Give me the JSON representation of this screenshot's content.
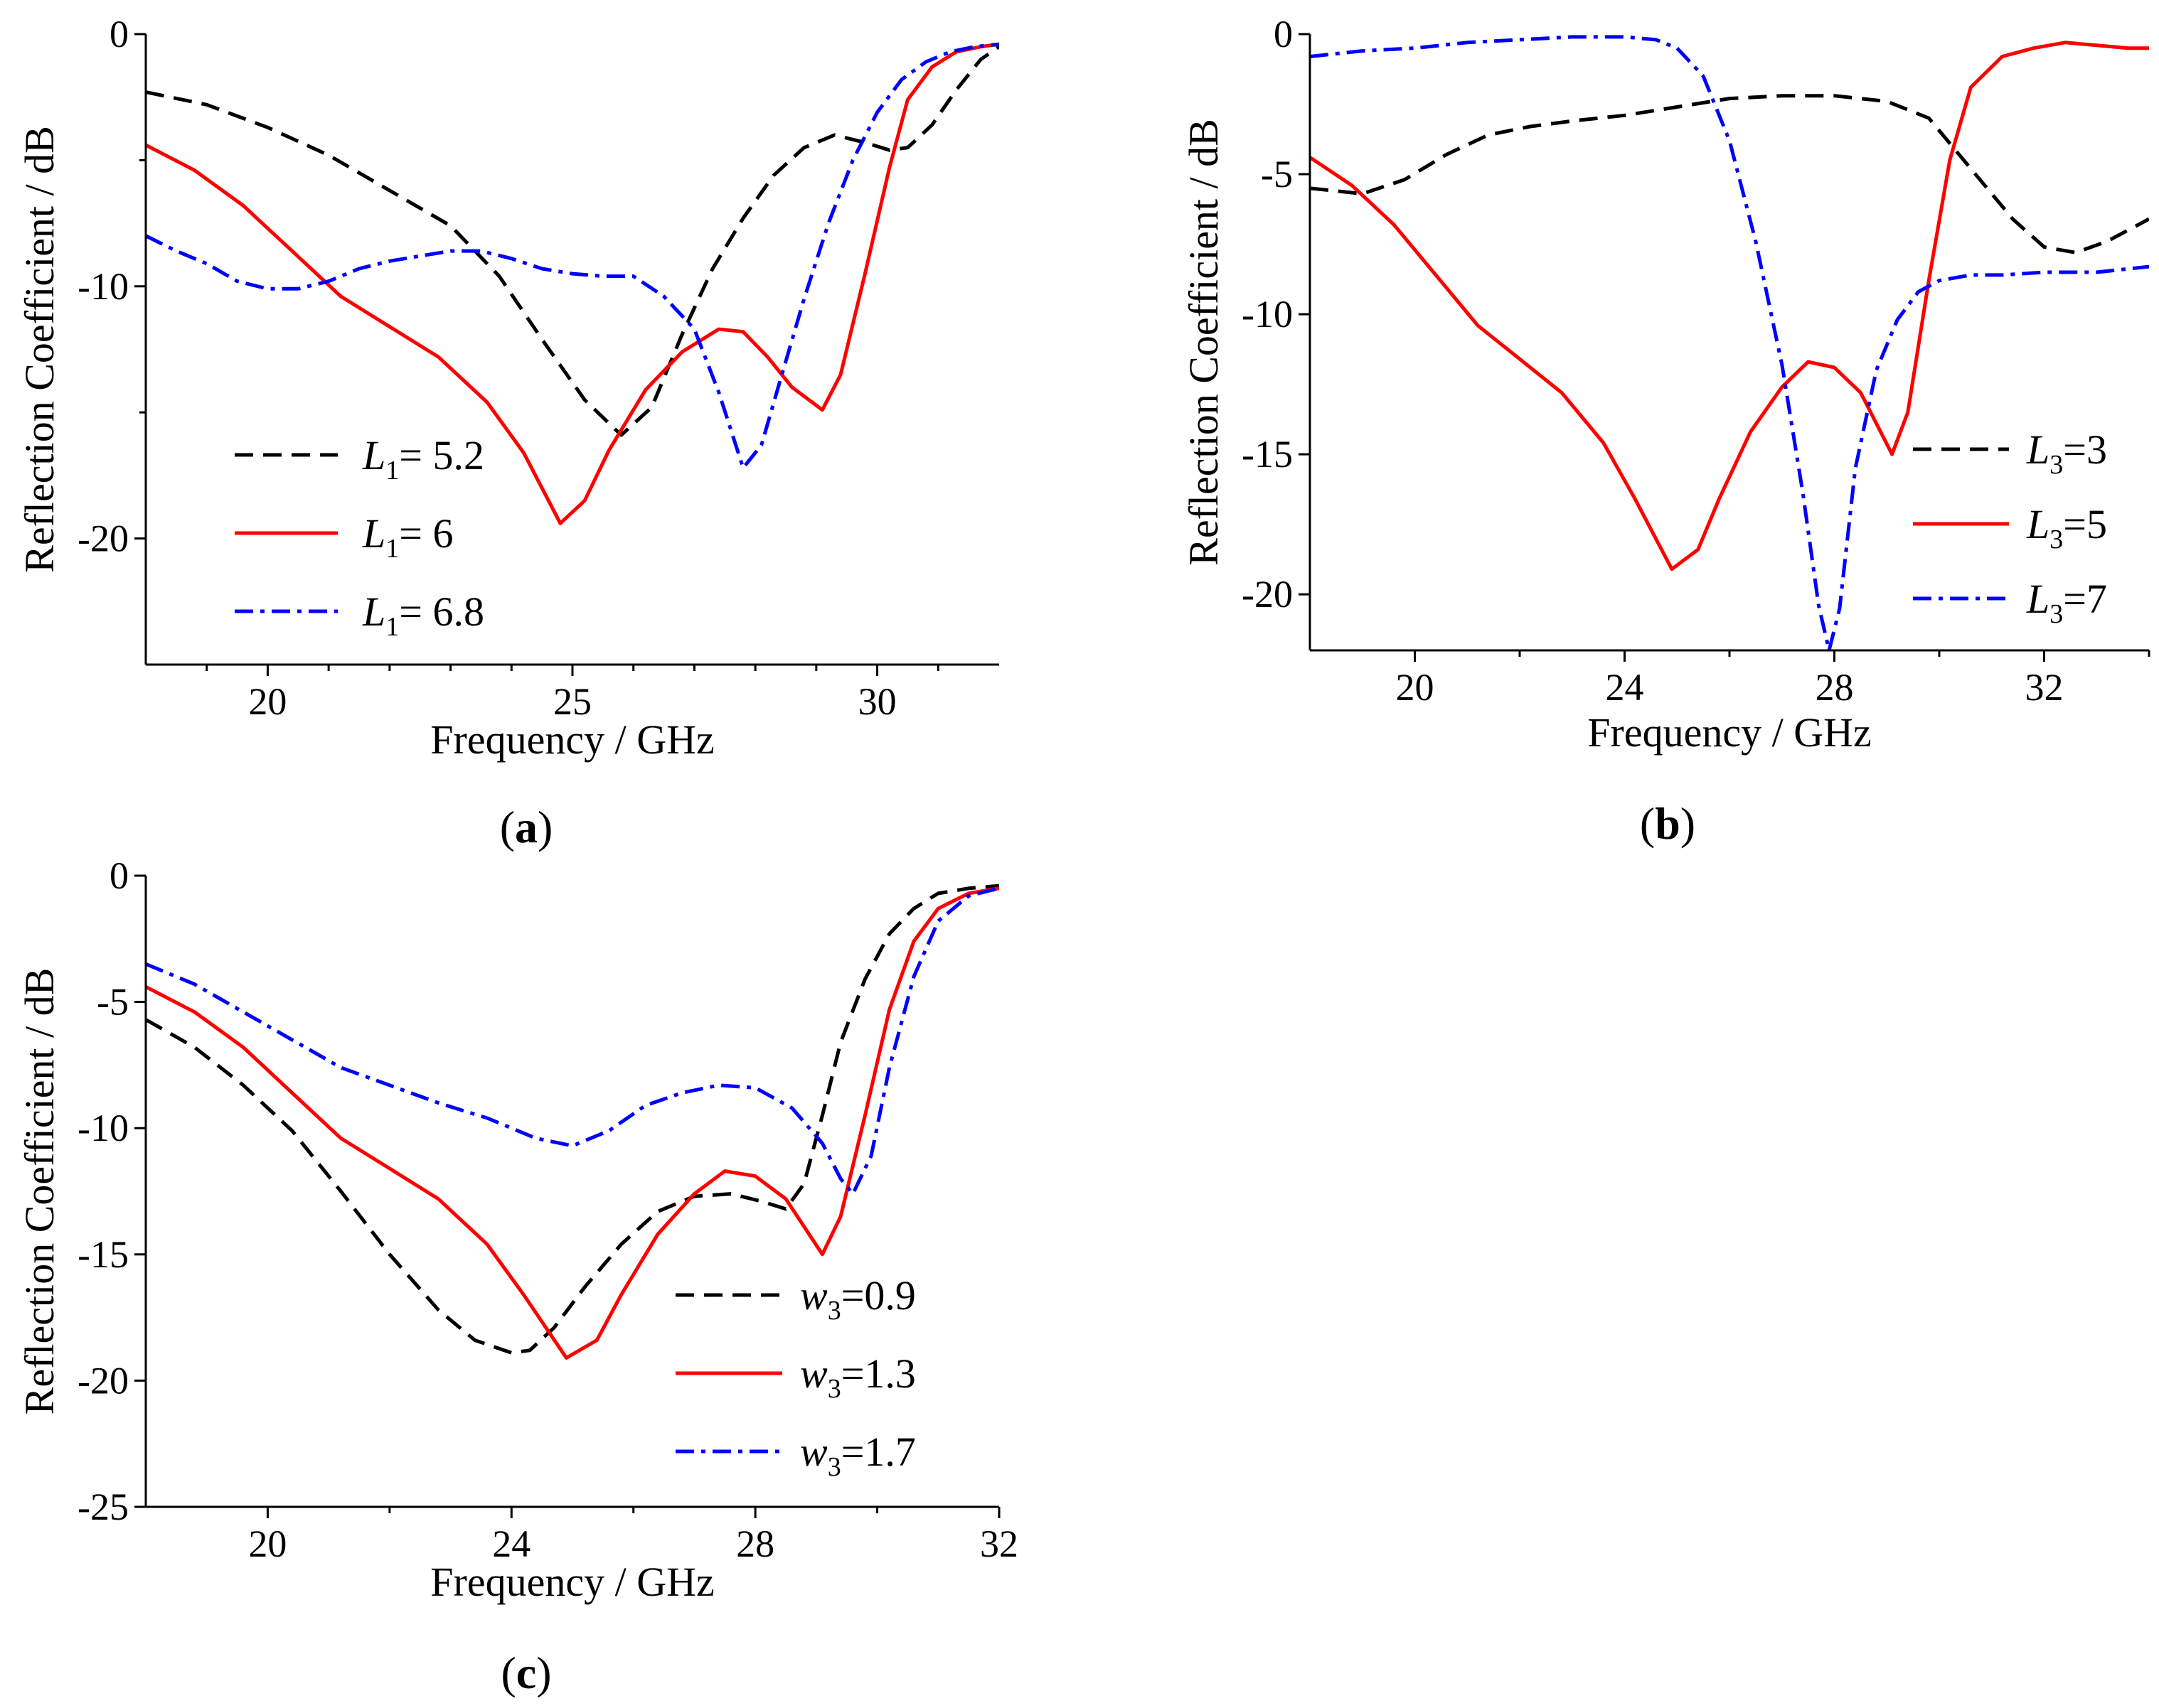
{
  "chart_data": [
    {
      "id": "a",
      "panel_label": "a",
      "type": "line",
      "xlabel": "Frequency / GHz",
      "ylabel": "Reflection Coefficient / dB",
      "xlim": [
        18,
        32
      ],
      "ylim": [
        -25,
        0
      ],
      "xticks": [
        20,
        25,
        30
      ],
      "yticks": [
        0,
        -10,
        -20
      ],
      "xticks_minor": [
        19,
        21,
        22,
        23,
        24,
        26,
        27,
        28,
        29,
        31
      ],
      "yticks_minor": [
        -5,
        -15
      ],
      "grid": false,
      "legend_position": "bottom-left",
      "series": [
        {
          "name_main": "L",
          "name_sub": "1",
          "name_rest": "= 5.2",
          "color": "#000000",
          "dash": "26,14",
          "x": [
            18,
            19,
            20,
            21,
            22,
            23,
            23.8,
            24.5,
            25.2,
            25.8,
            26.3,
            26.8,
            27.3,
            27.8,
            28.3,
            28.8,
            29.3,
            29.8,
            30.2,
            30.5,
            30.9,
            31.3,
            31.7,
            32
          ],
          "y": [
            -2.3,
            -2.8,
            -3.7,
            -4.8,
            -6.2,
            -7.6,
            -9.6,
            -12.1,
            -14.5,
            -15.9,
            -14.8,
            -11.9,
            -9.3,
            -7.3,
            -5.6,
            -4.5,
            -4.0,
            -4.3,
            -4.6,
            -4.5,
            -3.6,
            -2.2,
            -1.0,
            -0.5
          ]
        },
        {
          "name_main": "L",
          "name_sub": "1",
          "name_rest": "= 6",
          "color": "#ff0000",
          "dash": "",
          "x": [
            18,
            18.8,
            19.6,
            20.4,
            21.2,
            22,
            22.8,
            23.6,
            24.2,
            24.8,
            25.2,
            25.6,
            26.2,
            26.8,
            27.4,
            27.8,
            28.2,
            28.6,
            29.1,
            29.4,
            29.8,
            30.2,
            30.5,
            30.9,
            31.3,
            31.7,
            32
          ],
          "y": [
            -4.4,
            -5.4,
            -6.8,
            -8.6,
            -10.4,
            -11.6,
            -12.8,
            -14.6,
            -16.6,
            -19.4,
            -18.5,
            -16.5,
            -14.1,
            -12.6,
            -11.7,
            -11.8,
            -12.8,
            -14.0,
            -14.9,
            -13.5,
            -9.5,
            -5.3,
            -2.6,
            -1.3,
            -0.7,
            -0.5,
            -0.4
          ]
        },
        {
          "name_main": "L",
          "name_sub": "1",
          "name_rest": "= 6.8",
          "color": "#0000ff",
          "dash": "26,10,6,10",
          "x": [
            18,
            18.5,
            19,
            19.5,
            20,
            20.5,
            21,
            21.5,
            22,
            22.5,
            23,
            23.5,
            24,
            24.5,
            25,
            25.5,
            26,
            26.5,
            27,
            27.4,
            27.8,
            28.1,
            28.4,
            28.8,
            29.2,
            29.6,
            30,
            30.4,
            30.8,
            31.2,
            31.6,
            32
          ],
          "y": [
            -8.0,
            -8.6,
            -9.1,
            -9.8,
            -10.1,
            -10.1,
            -9.8,
            -9.3,
            -9.0,
            -8.8,
            -8.6,
            -8.6,
            -8.9,
            -9.3,
            -9.5,
            -9.6,
            -9.6,
            -10.4,
            -11.7,
            -14.2,
            -17.2,
            -16.3,
            -13.8,
            -10.5,
            -7.5,
            -5.0,
            -3.1,
            -1.8,
            -1.1,
            -0.7,
            -0.5,
            -0.4
          ]
        }
      ]
    },
    {
      "id": "b",
      "panel_label": "b",
      "type": "line",
      "xlabel": "Frequency / GHz",
      "ylabel": "Reflection Coefficient / dB",
      "xlim": [
        18,
        34
      ],
      "ylim": [
        -22,
        0
      ],
      "xticks": [
        20,
        24,
        28,
        32
      ],
      "yticks": [
        0,
        -5,
        -10,
        -15,
        -20
      ],
      "xticks_minor": [
        22,
        26,
        30,
        34
      ],
      "yticks_minor": [],
      "grid": false,
      "legend_position": "right",
      "series": [
        {
          "name_main": "L",
          "name_sub": "3",
          "name_rest": "=3",
          "color": "#000000",
          "dash": "26,14",
          "x": [
            18,
            19,
            19.8,
            20.6,
            21.4,
            22.2,
            23,
            24,
            25,
            26,
            27,
            28,
            29,
            29.8,
            30.6,
            31.4,
            32,
            32.6,
            33.2,
            34
          ],
          "y": [
            -5.5,
            -5.7,
            -5.2,
            -4.3,
            -3.6,
            -3.3,
            -3.1,
            -2.9,
            -2.6,
            -2.3,
            -2.2,
            -2.2,
            -2.4,
            -3.0,
            -4.8,
            -6.6,
            -7.6,
            -7.8,
            -7.4,
            -6.6
          ]
        },
        {
          "name_main": "L",
          "name_sub": "3",
          "name_rest": "=5",
          "color": "#ff0000",
          "dash": "",
          "x": [
            18,
            18.8,
            19.6,
            20.4,
            21.2,
            22,
            22.8,
            23.6,
            24.2,
            24.9,
            25.4,
            25.8,
            26.4,
            27,
            27.5,
            28,
            28.5,
            29.1,
            29.4,
            29.8,
            30.2,
            30.6,
            31.2,
            31.8,
            32.4,
            33,
            33.6,
            34
          ],
          "y": [
            -4.4,
            -5.4,
            -6.8,
            -8.6,
            -10.4,
            -11.6,
            -12.8,
            -14.6,
            -16.6,
            -19.1,
            -18.4,
            -16.6,
            -14.2,
            -12.6,
            -11.7,
            -11.9,
            -12.8,
            -15.0,
            -13.5,
            -8.8,
            -4.5,
            -1.9,
            -0.8,
            -0.5,
            -0.3,
            -0.4,
            -0.5,
            -0.5
          ]
        },
        {
          "name_main": "L",
          "name_sub": "3",
          "name_rest": "=7",
          "color": "#0000ff",
          "dash": "26,10,6,10",
          "x": [
            18,
            19,
            20,
            21,
            22,
            23,
            24,
            24.6,
            25,
            25.5,
            26,
            26.5,
            27,
            27.4,
            27.7,
            27.9,
            28.1,
            28.4,
            28.8,
            29.2,
            29.6,
            30,
            30.6,
            31.2,
            32,
            33,
            34
          ],
          "y": [
            -0.8,
            -0.6,
            -0.5,
            -0.3,
            -0.2,
            -0.1,
            -0.1,
            -0.2,
            -0.5,
            -1.5,
            -3.8,
            -7.4,
            -11.8,
            -16.4,
            -20.4,
            -22.0,
            -20.5,
            -15.5,
            -12.0,
            -10.2,
            -9.2,
            -8.8,
            -8.6,
            -8.6,
            -8.5,
            -8.5,
            -8.3
          ]
        }
      ]
    },
    {
      "id": "c",
      "panel_label": "c",
      "type": "line",
      "xlabel": "Frequency / GHz",
      "ylabel": "Reflection Coefficient / dB",
      "xlim": [
        18,
        32
      ],
      "ylim": [
        -25,
        0
      ],
      "xticks": [
        20,
        24,
        28,
        32
      ],
      "yticks": [
        0,
        -5,
        -10,
        -15,
        -20,
        -25
      ],
      "xticks_minor": [
        22,
        26,
        30
      ],
      "yticks_minor": [],
      "grid": false,
      "legend_position": "bottom-right",
      "series": [
        {
          "name_main": "w",
          "name_sub": "3",
          "name_rest": "=0.9",
          "color": "#000000",
          "dash": "26,14",
          "x": [
            18,
            18.8,
            19.6,
            20.4,
            21.2,
            22,
            22.8,
            23.4,
            24,
            24.3,
            24.7,
            25.2,
            25.8,
            26.4,
            27,
            27.6,
            28.1,
            28.5,
            28.8,
            29.1,
            29.4,
            29.8,
            30.2,
            30.6,
            31,
            31.5,
            32
          ],
          "y": [
            -5.7,
            -6.8,
            -8.3,
            -10.1,
            -12.5,
            -15.0,
            -17.2,
            -18.4,
            -18.9,
            -18.8,
            -17.9,
            -16.3,
            -14.6,
            -13.3,
            -12.7,
            -12.6,
            -12.9,
            -13.2,
            -12.2,
            -9.5,
            -6.6,
            -4.1,
            -2.3,
            -1.3,
            -0.7,
            -0.5,
            -0.4
          ]
        },
        {
          "name_main": "w",
          "name_sub": "3",
          "name_rest": "=1.3",
          "color": "#ff0000",
          "dash": "",
          "x": [
            18,
            18.8,
            19.6,
            20.4,
            21.2,
            22,
            22.8,
            23.6,
            24.2,
            24.9,
            25.4,
            25.8,
            26.4,
            27,
            27.5,
            28,
            28.5,
            29.1,
            29.4,
            29.8,
            30.2,
            30.6,
            31,
            31.5,
            32
          ],
          "y": [
            -4.4,
            -5.4,
            -6.8,
            -8.6,
            -10.4,
            -11.6,
            -12.8,
            -14.6,
            -16.6,
            -19.1,
            -18.4,
            -16.6,
            -14.2,
            -12.6,
            -11.7,
            -11.9,
            -12.8,
            -15.0,
            -13.5,
            -9.5,
            -5.3,
            -2.6,
            -1.3,
            -0.7,
            -0.5
          ]
        },
        {
          "name_main": "w",
          "name_sub": "3",
          "name_rest": "=1.7",
          "color": "#0000ff",
          "dash": "26,10,6,10",
          "x": [
            18,
            18.8,
            19.6,
            20.4,
            21.2,
            22,
            22.8,
            23.6,
            24.4,
            25,
            25.6,
            26.2,
            26.8,
            27.4,
            28,
            28.6,
            29.1,
            29.4,
            29.6,
            29.9,
            30.2,
            30.6,
            31,
            31.5,
            32
          ],
          "y": [
            -3.5,
            -4.3,
            -5.4,
            -6.5,
            -7.6,
            -8.3,
            -9.0,
            -9.6,
            -10.4,
            -10.7,
            -10.1,
            -9.1,
            -8.6,
            -8.3,
            -8.4,
            -9.2,
            -10.6,
            -12.0,
            -12.6,
            -11.1,
            -7.6,
            -4.0,
            -1.8,
            -0.8,
            -0.5
          ]
        }
      ]
    }
  ]
}
